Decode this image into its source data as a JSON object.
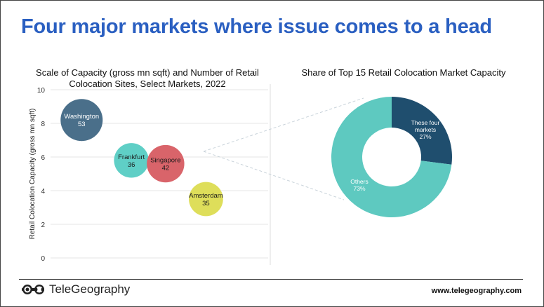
{
  "header": {
    "title": "Four major markets where issue comes to a head"
  },
  "footer": {
    "brand": "TeleGeography",
    "url": "www.telegeography.com"
  },
  "chart_data": [
    {
      "type": "bubble",
      "title": "Scale of Capacity (gross mn sqft) and Number of Retail Colocation Sites, Select Markets, 2022",
      "title_lines": [
        "Scale of Capacity (gross mn sqft) and Number of Retail",
        "Colocation Sites, Select Markets, 2022"
      ],
      "ylabel": "Retail Colocation Capacity (gross mn sqft)",
      "ylim": [
        0,
        10
      ],
      "yticks": [
        0,
        2,
        4,
        6,
        8,
        10
      ],
      "grid": true,
      "points": [
        {
          "name": "Washington",
          "x": 1,
          "y": 8.2,
          "size": 53,
          "color": "#4a6f8a",
          "label_color": "#ffffff"
        },
        {
          "name": "Frankfurt",
          "x": 2.6,
          "y": 5.8,
          "size": 36,
          "color": "#5fcfc6",
          "label_color": "#1a1a1a"
        },
        {
          "name": "Singapore",
          "x": 3.7,
          "y": 5.6,
          "size": 42,
          "color": "#d9646a",
          "label_color": "#1a1a1a"
        },
        {
          "name": "Amsterdam",
          "x": 5.0,
          "y": 3.5,
          "size": 35,
          "color": "#dede5a",
          "label_color": "#1a1a1a"
        }
      ],
      "xlim": [
        0,
        7
      ]
    },
    {
      "type": "donut",
      "title": "Share of Top 15 Retail Colocation Market Capacity",
      "slices": [
        {
          "label_lines": [
            "These four",
            "markets"
          ],
          "value": 27,
          "value_label": "27%",
          "color": "#1f4e6e",
          "label_color": "#ffffff"
        },
        {
          "label_lines": [
            "Others"
          ],
          "value": 73,
          "value_label": "73%",
          "color": "#5ec9c0",
          "label_color": "#ffffff"
        }
      ]
    }
  ]
}
